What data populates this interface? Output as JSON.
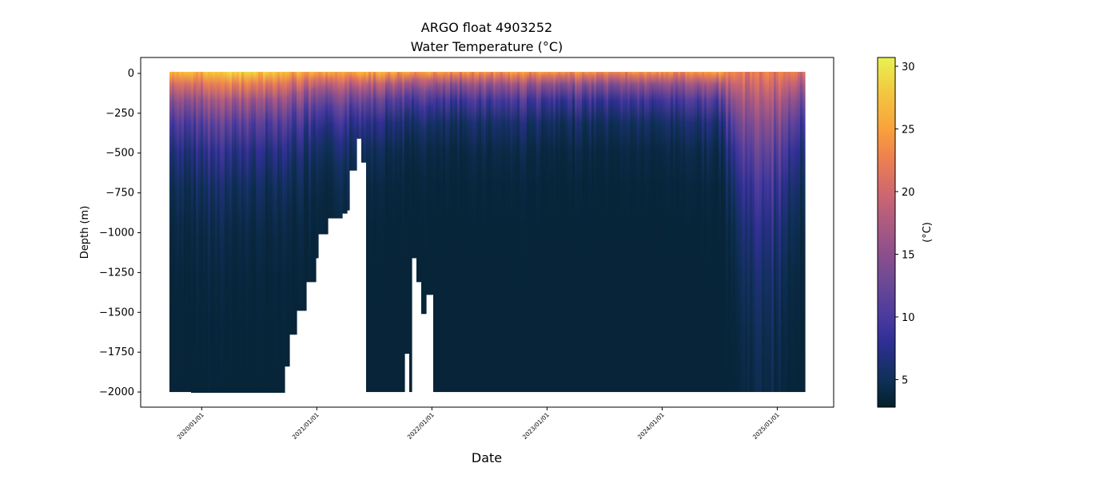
{
  "chart_data": {
    "type": "heatmap",
    "title": "ARGO float 4903252",
    "subtitle": "Water Temperature (°C)",
    "xlabel": "Date",
    "ylabel": "Depth (m)",
    "colorbar_label": "(°C)",
    "xlim": [
      2019.47,
      2025.49
    ],
    "ylim": [
      -2095,
      100
    ],
    "clim": [
      2.8,
      30.7
    ],
    "x_ticks": [
      {
        "value": 2020,
        "label": "2020/01/01"
      },
      {
        "value": 2021,
        "label": "2021/01/01"
      },
      {
        "value": 2022,
        "label": "2022/01/01"
      },
      {
        "value": 2023,
        "label": "2023/01/01"
      },
      {
        "value": 2024,
        "label": "2024/01/01"
      },
      {
        "value": 2025,
        "label": "2025/01/01"
      }
    ],
    "y_ticks": [
      {
        "value": 0,
        "label": "0"
      },
      {
        "value": -250,
        "label": "−250"
      },
      {
        "value": -500,
        "label": "−500"
      },
      {
        "value": -750,
        "label": "−750"
      },
      {
        "value": -1000,
        "label": "−1000"
      },
      {
        "value": -1250,
        "label": "−1250"
      },
      {
        "value": -1500,
        "label": "−1500"
      },
      {
        "value": -1750,
        "label": "−1750"
      },
      {
        "value": -2000,
        "label": "−2000"
      }
    ],
    "colorbar_ticks": [
      {
        "value": 5,
        "label": "5"
      },
      {
        "value": 10,
        "label": "10"
      },
      {
        "value": 15,
        "label": "15"
      },
      {
        "value": 20,
        "label": "20"
      },
      {
        "value": 25,
        "label": "25"
      },
      {
        "value": 30,
        "label": "30"
      }
    ],
    "colormap": [
      [
        2.8,
        "#04202c"
      ],
      [
        5,
        "#0f3058"
      ],
      [
        8,
        "#2f2f94"
      ],
      [
        10,
        "#4a3a9e"
      ],
      [
        13,
        "#6f4a94"
      ],
      [
        15,
        "#8c4f8c"
      ],
      [
        18,
        "#b35d7e"
      ],
      [
        20,
        "#d0686e"
      ],
      [
        23,
        "#f0844c"
      ],
      [
        25,
        "#f8a23c"
      ],
      [
        28,
        "#f3c840"
      ],
      [
        30.7,
        "#e8f252"
      ]
    ],
    "deep_temp": 3.4,
    "profiles": {
      "columns": [
        "date_year",
        "max_depth_m",
        "surface_temp_c",
        "decay_scale_m"
      ],
      "rows": [
        [
          2019.72,
          -1990,
          27,
          250
        ],
        [
          2019.9,
          -1995,
          27.5,
          280
        ],
        [
          2020.1,
          -1995,
          28.5,
          300
        ],
        [
          2020.3,
          -1995,
          29.5,
          280
        ],
        [
          2020.5,
          -1995,
          29,
          260
        ],
        [
          2020.68,
          -1995,
          28,
          250
        ],
        [
          2020.7,
          -1830,
          28,
          250
        ],
        [
          2020.75,
          -1630,
          27,
          240
        ],
        [
          2020.82,
          -1480,
          27,
          240
        ],
        [
          2020.9,
          -1300,
          26,
          240
        ],
        [
          2020.97,
          -1150,
          26,
          230
        ],
        [
          2021.0,
          -1000,
          26,
          230
        ],
        [
          2021.08,
          -900,
          26,
          220
        ],
        [
          2021.2,
          -870,
          26,
          220
        ],
        [
          2021.26,
          -850,
          26,
          210
        ],
        [
          2021.28,
          -600,
          26,
          200
        ],
        [
          2021.33,
          -400,
          27,
          190
        ],
        [
          2021.38,
          -550,
          27,
          180
        ],
        [
          2021.42,
          -1990,
          27,
          170
        ],
        [
          2021.76,
          -1750,
          26,
          150
        ],
        [
          2021.79,
          -1990,
          26,
          150
        ],
        [
          2021.81,
          -1150,
          26,
          150
        ],
        [
          2021.85,
          -1300,
          26,
          150
        ],
        [
          2021.9,
          -1500,
          26,
          150
        ],
        [
          2021.94,
          -1380,
          26,
          150
        ],
        [
          2022.0,
          -1990,
          26,
          150
        ],
        [
          2022.5,
          -1990,
          25,
          140
        ],
        [
          2022.75,
          -1990,
          25.5,
          150
        ],
        [
          2023.0,
          -1990,
          25,
          140
        ],
        [
          2023.5,
          -1990,
          24.5,
          130
        ],
        [
          2024.0,
          -1990,
          25,
          140
        ],
        [
          2024.5,
          -1990,
          25.5,
          170
        ],
        [
          2024.6,
          -1990,
          24,
          350
        ],
        [
          2024.75,
          -1990,
          23,
          600
        ],
        [
          2024.95,
          -1990,
          23,
          650
        ],
        [
          2025.1,
          -1990,
          22,
          350
        ],
        [
          2025.22,
          -1990,
          22,
          300
        ]
      ]
    }
  }
}
